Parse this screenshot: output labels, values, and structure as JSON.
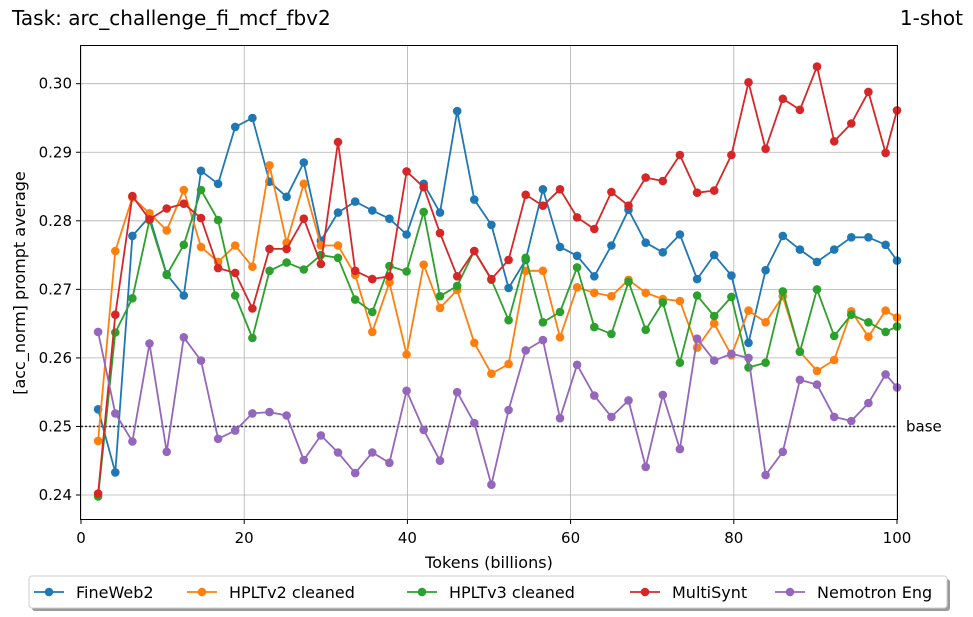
{
  "chart_data": {
    "type": "line",
    "title": "Task: arc_challenge_fi_mcf_fbv2",
    "shot_label": "1-shot",
    "xlabel": "Tokens (billions)",
    "ylabel": "[acc_norm] prompt average",
    "xlim": [
      0,
      100
    ],
    "ylim": [
      0.2365,
      0.3055
    ],
    "xticks": [
      0,
      20,
      40,
      60,
      80,
      100
    ],
    "yticks": [
      0.24,
      0.25,
      0.26,
      0.27,
      0.28,
      0.29,
      0.3
    ],
    "grid": true,
    "legend_position": "bottom",
    "baseline": {
      "label": "base",
      "value": 0.25
    },
    "x": [
      2.1,
      4.2,
      6.3,
      8.4,
      10.5,
      12.6,
      14.7,
      16.8,
      18.9,
      21.0,
      23.1,
      25.2,
      27.3,
      29.4,
      31.5,
      33.6,
      35.7,
      37.8,
      39.9,
      42.0,
      44.0,
      46.1,
      48.2,
      50.3,
      52.4,
      54.5,
      56.6,
      58.7,
      60.8,
      62.9,
      65.0,
      67.1,
      69.2,
      71.3,
      73.4,
      75.5,
      77.6,
      79.7,
      81.8,
      83.9,
      86.0,
      88.1,
      90.2,
      92.3,
      94.4,
      96.5,
      98.6,
      100.0
    ],
    "series": [
      {
        "name": "FineWeb2",
        "color": "#1f77b4",
        "values": [
          0.2525,
          0.2433,
          0.2778,
          0.2806,
          0.2722,
          0.2691,
          0.2873,
          0.2854,
          0.2937,
          0.295,
          0.2857,
          0.2835,
          0.2885,
          0.2771,
          0.2812,
          0.2828,
          0.2815,
          0.2803,
          0.278,
          0.2854,
          0.2812,
          0.296,
          0.2831,
          0.2794,
          0.2702,
          0.2743,
          0.2846,
          0.2762,
          0.2749,
          0.2719,
          0.2764,
          0.2816,
          0.2768,
          0.2754,
          0.278,
          0.2715,
          0.275,
          0.272,
          0.2622,
          0.2728,
          0.2778,
          0.2758,
          0.274,
          0.2758,
          0.2776,
          0.2776,
          0.2765,
          0.2742
        ]
      },
      {
        "name": "HPLTv2 cleaned",
        "color": "#ff7f0e",
        "values": [
          0.2479,
          0.2756,
          0.2834,
          0.2811,
          0.2786,
          0.2845,
          0.2762,
          0.274,
          0.2764,
          0.2733,
          0.2881,
          0.2768,
          0.2854,
          0.2764,
          0.2764,
          0.2721,
          0.2638,
          0.271,
          0.2605,
          0.2736,
          0.2673,
          0.2699,
          0.2622,
          0.2577,
          0.2591,
          0.2727,
          0.2727,
          0.263,
          0.2703,
          0.2695,
          0.269,
          0.2714,
          0.2695,
          0.2686,
          0.2683,
          0.2615,
          0.265,
          0.2604,
          0.2669,
          0.2652,
          0.269,
          0.2609,
          0.2581,
          0.2597,
          0.2668,
          0.2631,
          0.2669,
          0.2659
        ]
      },
      {
        "name": "HPLTv3 cleaned",
        "color": "#2ca02c",
        "values": [
          0.2398,
          0.2637,
          0.2687,
          0.2801,
          0.2721,
          0.2765,
          0.2845,
          0.2801,
          0.2691,
          0.2629,
          0.2727,
          0.2739,
          0.2729,
          0.275,
          0.2746,
          0.2685,
          0.2667,
          0.2734,
          0.2726,
          0.2813,
          0.269,
          0.2705,
          0.2756,
          0.2714,
          0.2655,
          0.2746,
          0.2652,
          0.2667,
          0.2732,
          0.2645,
          0.2635,
          0.2711,
          0.2641,
          0.2681,
          0.2593,
          0.2691,
          0.2661,
          0.2689,
          0.2586,
          0.2593,
          0.2697,
          0.2609,
          0.27,
          0.2632,
          0.2663,
          0.2652,
          0.2638,
          0.2646
        ]
      },
      {
        "name": "MultiSynt",
        "color": "#d62728",
        "values": [
          0.2402,
          0.2663,
          0.2836,
          0.2802,
          0.2818,
          0.2825,
          0.2804,
          0.2731,
          0.2724,
          0.2672,
          0.2759,
          0.2759,
          0.2803,
          0.2737,
          0.2915,
          0.2727,
          0.2715,
          0.2719,
          0.2872,
          0.2849,
          0.2782,
          0.2719,
          0.2756,
          0.2715,
          0.2743,
          0.2838,
          0.2822,
          0.2846,
          0.2805,
          0.2788,
          0.2842,
          0.2822,
          0.2863,
          0.2858,
          0.2896,
          0.2841,
          0.2844,
          0.2896,
          0.3002,
          0.2905,
          0.2978,
          0.2962,
          0.3025,
          0.2916,
          0.2942,
          0.2988,
          0.2899,
          0.2961
        ]
      },
      {
        "name": "Nemotron Eng",
        "color": "#9467bd",
        "values": [
          0.2638,
          0.2519,
          0.2478,
          0.2621,
          0.2463,
          0.263,
          0.2596,
          0.2482,
          0.2494,
          0.2519,
          0.2521,
          0.2516,
          0.2451,
          0.2487,
          0.2462,
          0.2432,
          0.2462,
          0.2447,
          0.2552,
          0.2495,
          0.245,
          0.255,
          0.2505,
          0.2415,
          0.2524,
          0.2611,
          0.2626,
          0.2512,
          0.259,
          0.2545,
          0.2514,
          0.2538,
          0.2441,
          0.2546,
          0.2467,
          0.2628,
          0.2596,
          0.2606,
          0.26,
          0.2429,
          0.2463,
          0.2568,
          0.2561,
          0.2514,
          0.2508,
          0.2534,
          0.2576,
          0.2557
        ]
      }
    ]
  }
}
